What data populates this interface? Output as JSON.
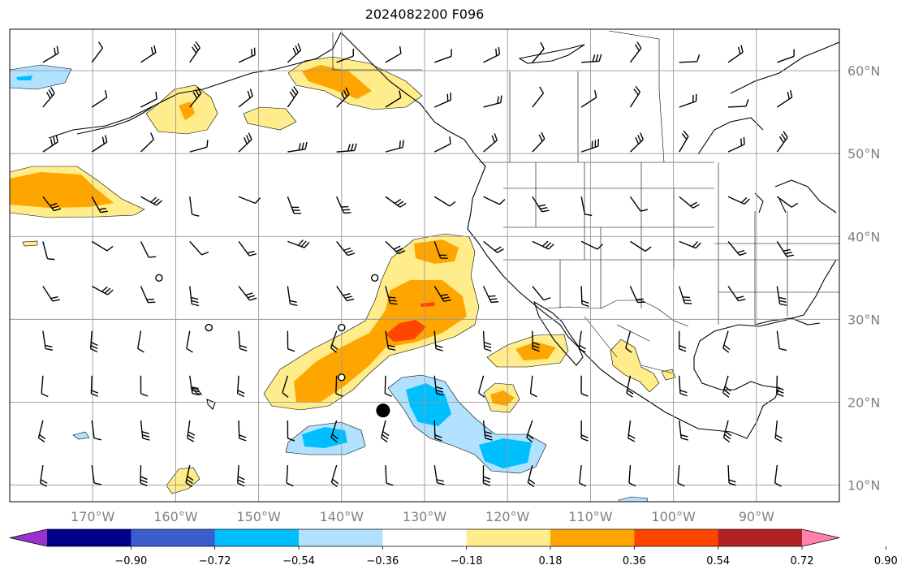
{
  "title": "2024082200 F096",
  "map": {
    "projection": "plate-carree",
    "lon_range": [
      -180,
      -80
    ],
    "lat_range": [
      8,
      65
    ],
    "gridlines": true,
    "lon_ticks": [
      {
        "value": -170,
        "label": "170°W"
      },
      {
        "value": -160,
        "label": "160°W"
      },
      {
        "value": -150,
        "label": "150°W"
      },
      {
        "value": -140,
        "label": "140°W"
      },
      {
        "value": -130,
        "label": "130°W"
      },
      {
        "value": -120,
        "label": "120°W"
      },
      {
        "value": -110,
        "label": "110°W"
      },
      {
        "value": -100,
        "label": "100°W"
      },
      {
        "value": -90,
        "label": "90°W"
      }
    ],
    "lat_ticks": [
      {
        "value": 60,
        "label": "60°N"
      },
      {
        "value": 50,
        "label": "50°N"
      },
      {
        "value": 40,
        "label": "40°N"
      },
      {
        "value": 30,
        "label": "30°N"
      },
      {
        "value": 20,
        "label": "20°N"
      },
      {
        "value": 10,
        "label": "10°N"
      }
    ],
    "marker": {
      "lon": -135,
      "lat": 19,
      "color": "#000000"
    },
    "calm_circles": [
      {
        "lon": -162,
        "lat": 35
      },
      {
        "lon": -136,
        "lat": 35
      },
      {
        "lon": -156,
        "lat": 29
      },
      {
        "lon": -140,
        "lat": 29
      },
      {
        "lon": -140,
        "lat": 23
      }
    ]
  },
  "colorbar": {
    "levels": [
      "−0.90",
      "−0.72",
      "−0.54",
      "−0.36",
      "−0.18",
      "0.18",
      "0.36",
      "0.54",
      "0.72",
      "0.90"
    ],
    "colors": [
      "#9932cc",
      "#00008b",
      "#3a5fcd",
      "#00bfff",
      "#b0e2ff",
      "#ffffff",
      "#ffec8b",
      "#ffa500",
      "#ff4500",
      "#b22222",
      "#ff82ab"
    ]
  }
}
